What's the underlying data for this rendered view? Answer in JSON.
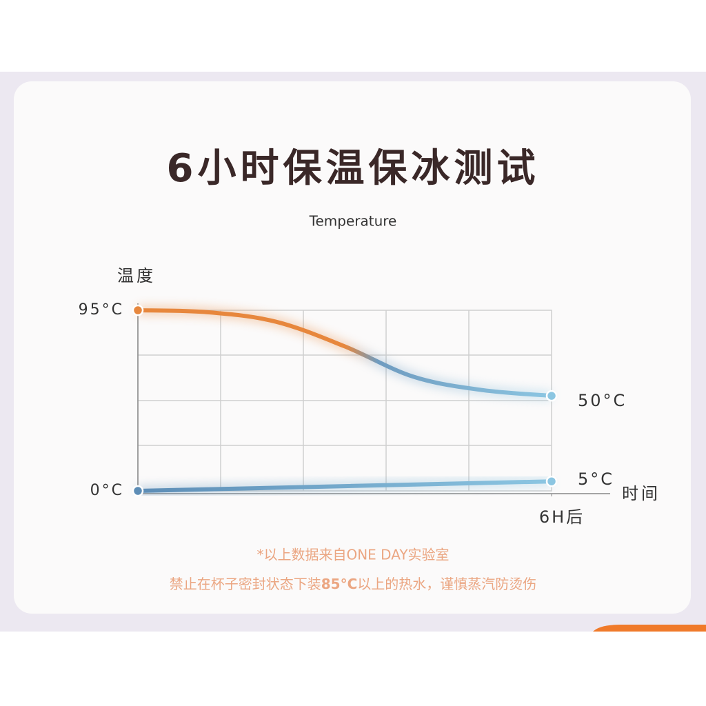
{
  "chart_data": {
    "type": "line",
    "title": "6小时保温保冰测试",
    "subtitle": "Temperature",
    "y_label": "温度",
    "x_label": "时间",
    "xlim": [
      0,
      6
    ],
    "xticks": [
      {
        "value": 6,
        "label": "6H后"
      }
    ],
    "ylim": [
      0,
      95
    ],
    "yticks": [
      {
        "value": 0,
        "label": "0°C"
      },
      {
        "value": 95,
        "label": "95°C"
      }
    ],
    "grid": true,
    "series": [
      {
        "x": [
          0,
          1,
          2,
          3,
          4,
          5,
          6
        ],
        "values": [
          95,
          94,
          89,
          76,
          60,
          53,
          50
        ],
        "value_labels": [
          null,
          null,
          null,
          null,
          null,
          null,
          "50°C"
        ],
        "gradient": [
          "#e7873d",
          "#8cc6e2"
        ]
      },
      {
        "x": [
          0,
          6
        ],
        "values": [
          0,
          5
        ],
        "value_labels": [
          null,
          "5°C"
        ],
        "gradient": [
          "#5d8db6",
          "#8cc6e2"
        ]
      }
    ],
    "notes": [
      "*以上数据来自ONE DAY实验室",
      [
        "禁止在杯子密封状态下装",
        "85°C",
        "以上的热水，谨慎蒸汽防烫伤"
      ]
    ]
  }
}
